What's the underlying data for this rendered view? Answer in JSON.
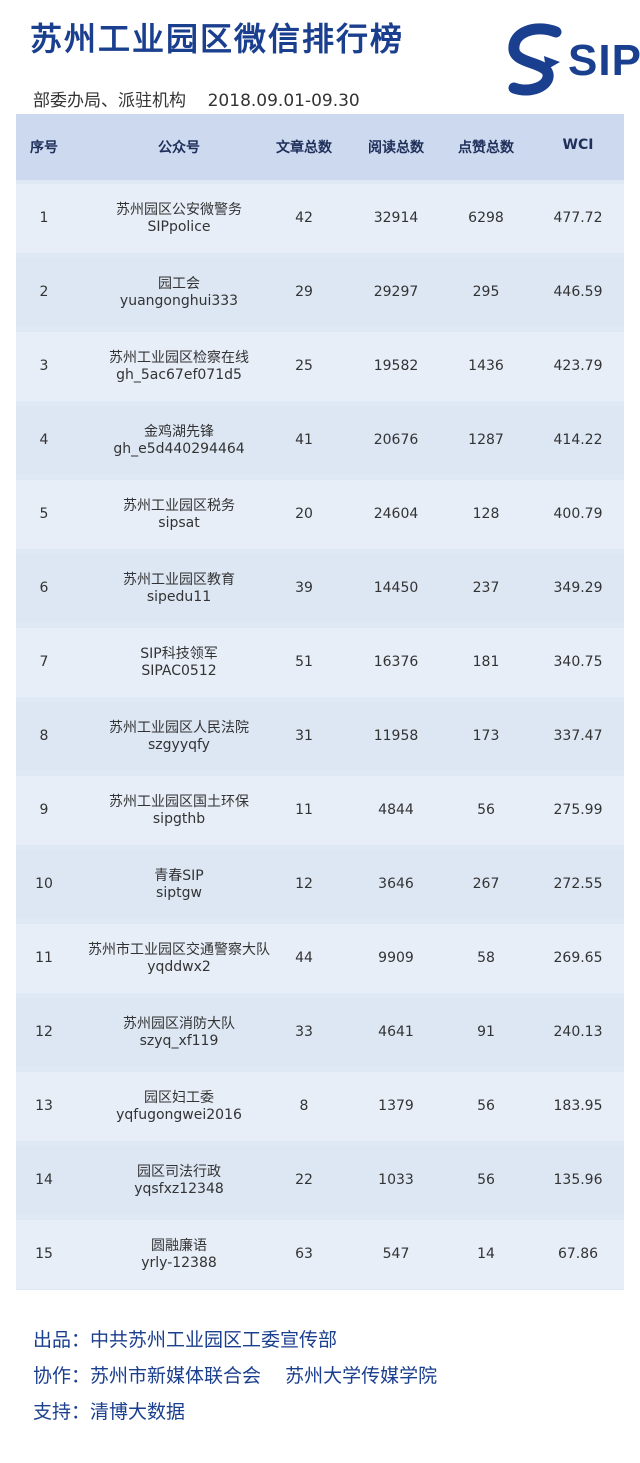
{
  "header": {
    "title": "苏州工业园区微信排行榜",
    "subtitle": "部委办局、派驻机构    2018.09.01-09.30",
    "logo_text": "SIP"
  },
  "table": {
    "columns": [
      "序号",
      "公众号",
      "文章总数",
      "阅读总数",
      "点赞总数",
      "WCI"
    ],
    "rows": [
      {
        "rank": "1",
        "name": "苏州园区公安微警务",
        "id": "SIPpolice",
        "articles": "42",
        "reads": "32914",
        "likes": "6298",
        "wci": "477.72"
      },
      {
        "rank": "2",
        "name": "园工会",
        "id": "yuangonghui333",
        "articles": "29",
        "reads": "29297",
        "likes": "295",
        "wci": "446.59"
      },
      {
        "rank": "3",
        "name": "苏州工业园区检察在线",
        "id": "gh_5ac67ef071d5",
        "articles": "25",
        "reads": "19582",
        "likes": "1436",
        "wci": "423.79"
      },
      {
        "rank": "4",
        "name": "金鸡湖先锋",
        "id": "gh_e5d440294464",
        "articles": "41",
        "reads": "20676",
        "likes": "1287",
        "wci": "414.22"
      },
      {
        "rank": "5",
        "name": "苏州工业园区税务",
        "id": "sipsat",
        "articles": "20",
        "reads": "24604",
        "likes": "128",
        "wci": "400.79"
      },
      {
        "rank": "6",
        "name": "苏州工业园区教育",
        "id": "sipedu11",
        "articles": "39",
        "reads": "14450",
        "likes": "237",
        "wci": "349.29"
      },
      {
        "rank": "7",
        "name": "SIP科技领军",
        "id": "SIPAC0512",
        "articles": "51",
        "reads": "16376",
        "likes": "181",
        "wci": "340.75"
      },
      {
        "rank": "8",
        "name": "苏州工业园区人民法院",
        "id": "szgyyqfy",
        "articles": "31",
        "reads": "11958",
        "likes": "173",
        "wci": "337.47"
      },
      {
        "rank": "9",
        "name": "苏州工业园区国土环保",
        "id": "sipgthb",
        "articles": "11",
        "reads": "4844",
        "likes": "56",
        "wci": "275.99"
      },
      {
        "rank": "10",
        "name": "青春SIP",
        "id": "siptgw",
        "articles": "12",
        "reads": "3646",
        "likes": "267",
        "wci": "272.55"
      },
      {
        "rank": "11",
        "name": "苏州市工业园区交通警察大队",
        "id": "yqddwx2",
        "articles": "44",
        "reads": "9909",
        "likes": "58",
        "wci": "269.65"
      },
      {
        "rank": "12",
        "name": "苏州园区消防大队",
        "id": "szyq_xf119",
        "articles": "33",
        "reads": "4641",
        "likes": "91",
        "wci": "240.13"
      },
      {
        "rank": "13",
        "name": "园区妇工委",
        "id": "yqfugongwei2016",
        "articles": "8",
        "reads": "1379",
        "likes": "56",
        "wci": "183.95"
      },
      {
        "rank": "14",
        "name": "园区司法行政",
        "id": "yqsfxz12348",
        "articles": "22",
        "reads": "1033",
        "likes": "56",
        "wci": "135.96"
      },
      {
        "rank": "15",
        "name": "圆融廉语",
        "id": "yrly-12388",
        "articles": "63",
        "reads": "547",
        "likes": "14",
        "wci": "67.86"
      }
    ]
  },
  "footer": {
    "lines": [
      "出品：中共苏州工业园区工委宣传部",
      "协作：苏州市新媒体联合会    苏州大学传媒学院",
      "支持：清博大数据"
    ]
  },
  "colors": {
    "brand_blue": "#1b3f8f",
    "header_row": "#cdd9ee",
    "row_bg": "#e7eef8"
  }
}
